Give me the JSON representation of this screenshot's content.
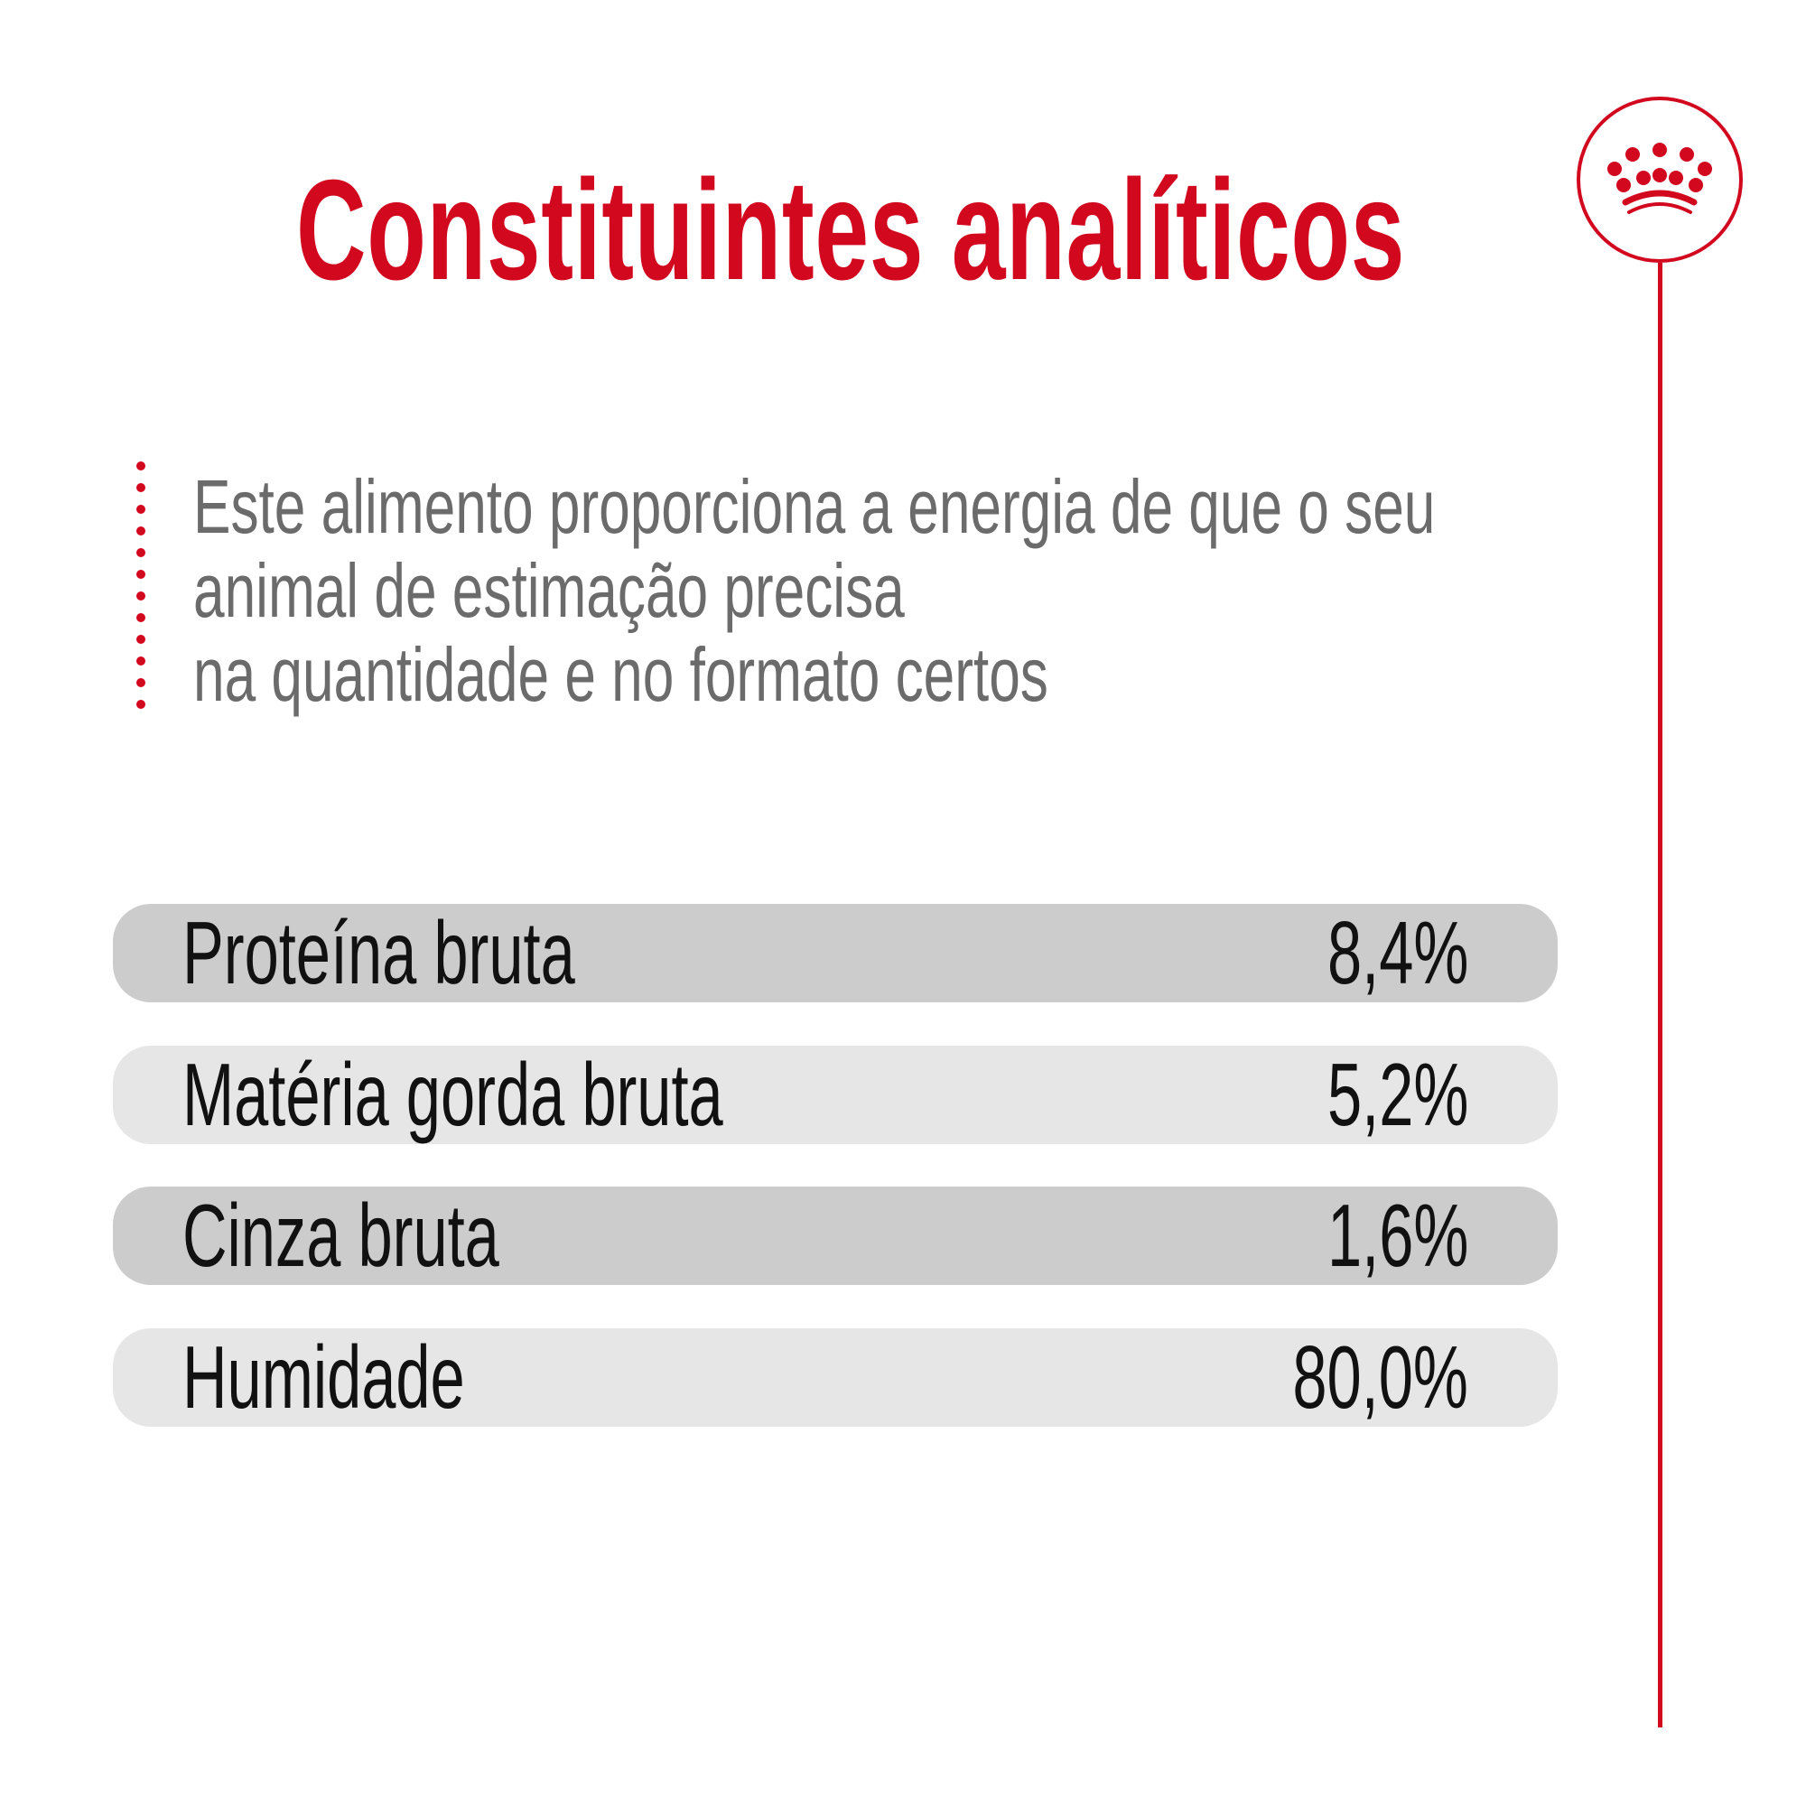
{
  "title": "Constituintes analíticos",
  "brand": {
    "logo_icon": "royal-canin-crown-icon",
    "accent_color": "#d2081e"
  },
  "description": {
    "lines": [
      "Este alimento proporciona a energia de que o seu",
      "animal de estimação precisa",
      "na quantidade e no formato certos"
    ]
  },
  "constituents": [
    {
      "label": "Proteína bruta",
      "value": "8,4%"
    },
    {
      "label": "Matéria gorda bruta",
      "value": "5,2%"
    },
    {
      "label": "Cinza bruta",
      "value": "1,6%"
    },
    {
      "label": "Humidade",
      "value": "80,0%"
    }
  ]
}
